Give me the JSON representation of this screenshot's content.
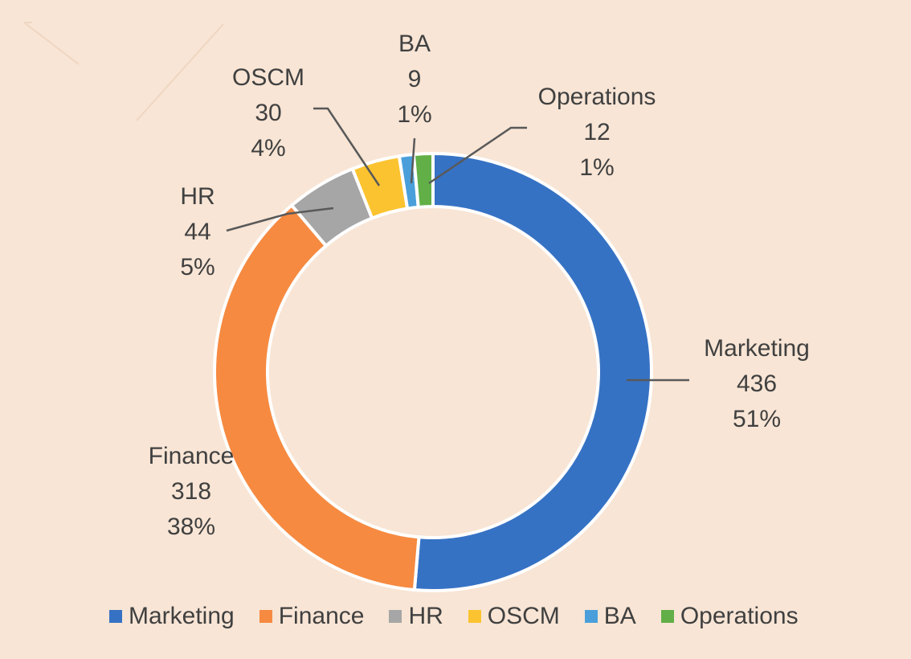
{
  "chart_data": {
    "type": "pie",
    "donut": true,
    "title": "",
    "categories": [
      "Marketing",
      "Finance",
      "HR",
      "OSCM",
      "BA",
      "Operations"
    ],
    "values": [
      436,
      318,
      44,
      30,
      9,
      12
    ],
    "percent_labels": [
      "51%",
      "38%",
      "5%",
      "4%",
      "1%",
      "1%"
    ],
    "colors": [
      "#3672c4",
      "#f68a41",
      "#a6a6a6",
      "#fbc330",
      "#4a9fdb",
      "#62af48"
    ],
    "legend_position": "bottom",
    "data_labels": true,
    "leader_lines": true
  }
}
